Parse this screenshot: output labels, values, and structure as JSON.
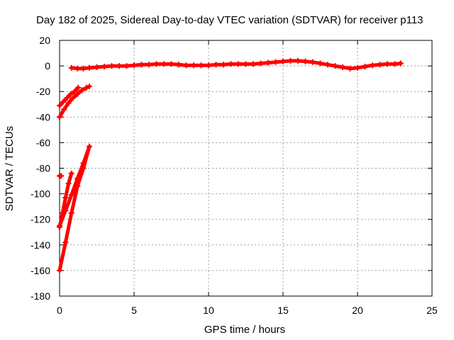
{
  "chart_data": {
    "type": "scatter",
    "title": "Day 182 of 2025, Sidereal Day-to-day VTEC variation (SDTVAR) for receiver p113",
    "xlabel": "GPS time / hours",
    "ylabel": "SDTVAR / TECUs",
    "xlim": [
      0,
      25
    ],
    "ylim": [
      -180,
      20
    ],
    "xticks": [
      0,
      5,
      10,
      15,
      20,
      25
    ],
    "yticks": [
      -180,
      -160,
      -140,
      -120,
      -100,
      -80,
      -60,
      -40,
      -20,
      0,
      20
    ],
    "grid": true,
    "marker": "plus",
    "series": [
      {
        "name": "SDTVAR",
        "color": "#ff0000",
        "segments": [
          {
            "x": [
              0.8,
              1.2,
              1.6,
              2.0,
              2.5,
              3.0,
              3.5,
              4.0,
              4.5,
              5.0,
              5.5,
              6.0,
              6.5,
              7.0,
              7.5,
              8.0,
              8.5,
              9.0,
              9.5,
              10.0,
              10.5,
              11.0,
              11.5,
              12.0,
              12.5,
              13.0,
              13.5,
              14.0,
              14.5,
              15.0,
              15.5,
              16.0,
              16.5,
              17.0,
              17.5,
              18.0,
              18.5,
              19.0,
              19.5,
              20.0,
              20.5,
              21.0,
              21.5,
              22.0,
              22.5,
              22.9
            ],
            "y": [
              -1.5,
              -2,
              -2,
              -1.5,
              -1,
              -0.5,
              0,
              0,
              0,
              0.5,
              1,
              1,
              1.5,
              1.5,
              1.5,
              1,
              0.5,
              0.5,
              0.5,
              0.5,
              1,
              1,
              1.5,
              1.5,
              1.5,
              1.5,
              2,
              2.5,
              3,
              3.5,
              4,
              4,
              3.5,
              3,
              2,
              1,
              0,
              -1,
              -2,
              -1.5,
              -0.5,
              0.5,
              1,
              1.5,
              1.5,
              2
            ]
          },
          {
            "x": [
              0.0,
              0.25,
              0.5,
              0.75,
              1.0,
              1.25
            ],
            "y": [
              -31,
              -28,
              -25,
              -22,
              -20,
              -17
            ]
          },
          {
            "x": [
              0.0,
              0.3,
              0.6,
              0.9,
              1.2,
              1.5,
              1.8,
              2.0
            ],
            "y": [
              -40,
              -34,
              -29,
              -25,
              -22,
              -19,
              -17,
              -16
            ]
          },
          {
            "x": [
              0.0,
              0.1
            ],
            "y": [
              -86,
              -86
            ]
          },
          {
            "x": [
              0.0,
              0.2,
              0.4,
              0.6,
              0.8
            ],
            "y": [
              -126,
              -115,
              -103,
              -92,
              -84
            ]
          },
          {
            "x": [
              0.0,
              0.4,
              0.8,
              1.2,
              1.6,
              2.0
            ],
            "y": [
              -125,
              -113,
              -101,
              -88,
              -76,
              -63
            ]
          },
          {
            "x": [
              0.0,
              0.4,
              0.8,
              1.2,
              1.6,
              2.0
            ],
            "y": [
              -160,
              -138,
              -115,
              -94,
              -80,
              -63
            ]
          }
        ]
      }
    ]
  }
}
